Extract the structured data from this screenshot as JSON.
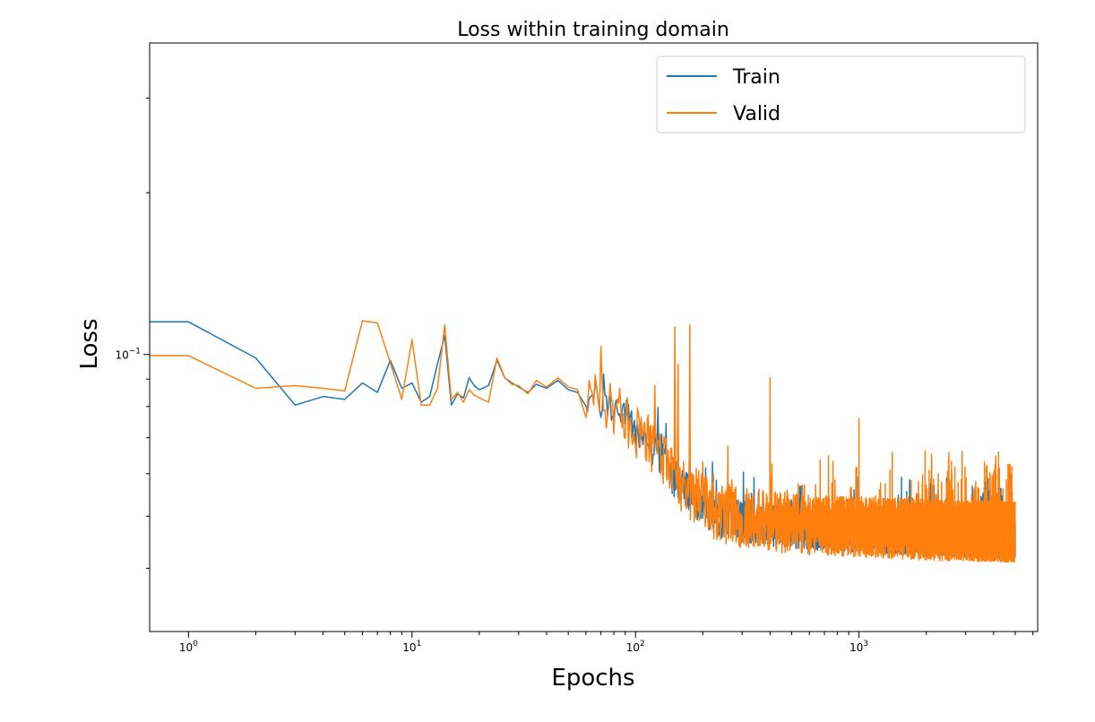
{
  "chart_data": {
    "type": "line",
    "title": "Loss within training domain",
    "xlabel": "Epochs",
    "ylabel": "Loss",
    "x_scale": "log",
    "y_scale": "log",
    "xlim": [
      0.67,
      6300
    ],
    "ylim": [
      0.0305,
      0.38
    ],
    "grid": false,
    "legend_position": "top-right",
    "x_ticks": [
      {
        "value": 1,
        "mantissa": "10",
        "exponent": "0"
      },
      {
        "value": 10,
        "mantissa": "10",
        "exponent": "1"
      },
      {
        "value": 100,
        "mantissa": "10",
        "exponent": "2"
      },
      {
        "value": 1000,
        "mantissa": "10",
        "exponent": "3"
      }
    ],
    "y_ticks": [
      {
        "value": 0.1,
        "mantissa": "10",
        "exponent": "−1"
      }
    ],
    "series": [
      {
        "name": "Train",
        "color": "#1f77b4",
        "points": [
          [
            0.67,
            0.115
          ],
          [
            1,
            0.115
          ],
          [
            2,
            0.0985
          ],
          [
            3,
            0.0805
          ],
          [
            4,
            0.0835
          ],
          [
            5,
            0.0825
          ],
          [
            6,
            0.0885
          ],
          [
            7,
            0.085
          ],
          [
            8,
            0.0975
          ],
          [
            9,
            0.0865
          ],
          [
            10,
            0.0885
          ],
          [
            11,
            0.0815
          ],
          [
            12,
            0.0835
          ],
          [
            13,
            0.096
          ],
          [
            14,
            0.1085
          ],
          [
            15,
            0.0805
          ],
          [
            16,
            0.0845
          ],
          [
            17,
            0.083
          ],
          [
            18,
            0.0905
          ],
          [
            19,
            0.0875
          ],
          [
            20,
            0.086
          ],
          [
            22,
            0.0875
          ],
          [
            24,
            0.0975
          ],
          [
            26,
            0.0905
          ],
          [
            28,
            0.0885
          ],
          [
            30,
            0.087
          ],
          [
            33,
            0.085
          ],
          [
            36,
            0.088
          ],
          [
            40,
            0.0865
          ],
          [
            45,
            0.0895
          ],
          [
            50,
            0.086
          ],
          [
            55,
            0.085
          ],
          [
            60,
            0.083
          ],
          [
            70,
            0.0815
          ],
          [
            80,
            0.08
          ],
          [
            90,
            0.077
          ],
          [
            100,
            0.073
          ],
          [
            115,
            0.068
          ],
          [
            130,
            0.064
          ],
          [
            150,
            0.059
          ],
          [
            170,
            0.0555
          ],
          [
            200,
            0.0525
          ],
          [
            240,
            0.05
          ],
          [
            300,
            0.049
          ],
          [
            400,
            0.0482
          ],
          [
            600,
            0.0476
          ],
          [
            1000,
            0.047
          ],
          [
            1500,
            0.0466
          ],
          [
            2500,
            0.0462
          ],
          [
            5000,
            0.046
          ]
        ],
        "noise": 0.09
      },
      {
        "name": "Valid",
        "color": "#ff7f0e",
        "points": [
          [
            0.67,
            0.0995
          ],
          [
            1,
            0.0995
          ],
          [
            2,
            0.0865
          ],
          [
            3,
            0.0875
          ],
          [
            4,
            0.0865
          ],
          [
            5,
            0.0855
          ],
          [
            6,
            0.1155
          ],
          [
            7,
            0.1145
          ],
          [
            8,
            0.0965
          ],
          [
            9,
            0.0825
          ],
          [
            10,
            0.1065
          ],
          [
            11,
            0.0805
          ],
          [
            12,
            0.0805
          ],
          [
            13,
            0.0865
          ],
          [
            14,
            0.1135
          ],
          [
            15,
            0.0825
          ],
          [
            16,
            0.085
          ],
          [
            17,
            0.0815
          ],
          [
            18,
            0.086
          ],
          [
            19,
            0.084
          ],
          [
            20,
            0.083
          ],
          [
            22,
            0.0815
          ],
          [
            24,
            0.0985
          ],
          [
            26,
            0.0905
          ],
          [
            28,
            0.088
          ],
          [
            30,
            0.0875
          ],
          [
            33,
            0.0845
          ],
          [
            36,
            0.0895
          ],
          [
            40,
            0.087
          ],
          [
            45,
            0.0905
          ],
          [
            50,
            0.087
          ],
          [
            55,
            0.086
          ],
          [
            60,
            0.084
          ],
          [
            70,
            0.0825
          ],
          [
            80,
            0.08
          ],
          [
            90,
            0.0765
          ],
          [
            100,
            0.073
          ],
          [
            115,
            0.068
          ],
          [
            130,
            0.0645
          ],
          [
            150,
            0.06
          ],
          [
            170,
            0.0565
          ],
          [
            200,
            0.0535
          ],
          [
            240,
            0.051
          ],
          [
            300,
            0.05
          ],
          [
            400,
            0.0492
          ],
          [
            600,
            0.0486
          ],
          [
            1000,
            0.0482
          ],
          [
            1500,
            0.0478
          ],
          [
            2500,
            0.0474
          ],
          [
            5000,
            0.0472
          ]
        ],
        "noise": 0.13,
        "spikes": [
          [
            70,
            0.1035
          ],
          [
            150,
            0.1125
          ],
          [
            155,
            0.096
          ],
          [
            175,
            0.1135
          ],
          [
            400,
            0.0905
          ],
          [
            1000,
            0.076
          ]
        ]
      }
    ]
  }
}
